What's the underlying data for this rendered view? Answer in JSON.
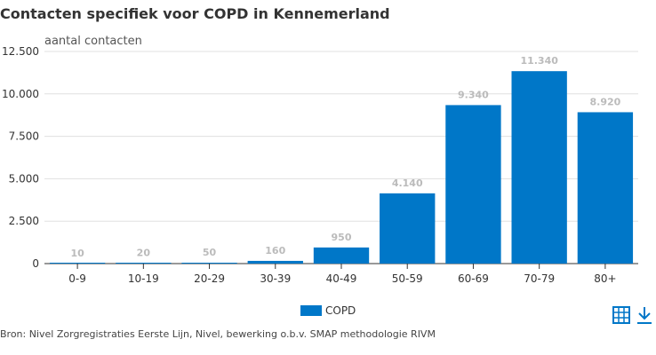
{
  "title": "Contacten specifiek voor COPD in Kennemerland",
  "source": "Bron: Nivel Zorgregistraties Eerste Lijn, Nivel, bewerking o.b.v. SMAP methodologie RIVM",
  "colors": {
    "bar": "#0077c8",
    "data_label": "#bbbbbb",
    "grid": "#e0e0e0",
    "axis": "#333333",
    "icon": "#0077c8"
  },
  "icons": {
    "table": "table-icon",
    "download": "download-icon"
  },
  "chart_data": {
    "type": "bar",
    "title": "Contacten specifiek voor COPD in Kennemerland",
    "ylabel": "aantal contacten",
    "xlabel": "",
    "categories": [
      "0-9",
      "10-19",
      "20-29",
      "30-39",
      "40-49",
      "50-59",
      "60-69",
      "70-79",
      "80+"
    ],
    "series": [
      {
        "name": "COPD",
        "values": [
          10,
          20,
          50,
          160,
          950,
          4140,
          9340,
          11340,
          8920
        ],
        "value_labels": [
          "10",
          "20",
          "50",
          "160",
          "950",
          "4.140",
          "9.340",
          "11.340",
          "8.920"
        ]
      }
    ],
    "ylim": [
      0,
      12500
    ],
    "yticks": [
      0,
      2500,
      5000,
      7500,
      10000,
      12500
    ],
    "ytick_labels": [
      "0",
      "2.500",
      "5.000",
      "7.500",
      "10.000",
      "12.500"
    ],
    "grid": true,
    "legend": "bottom-center"
  }
}
